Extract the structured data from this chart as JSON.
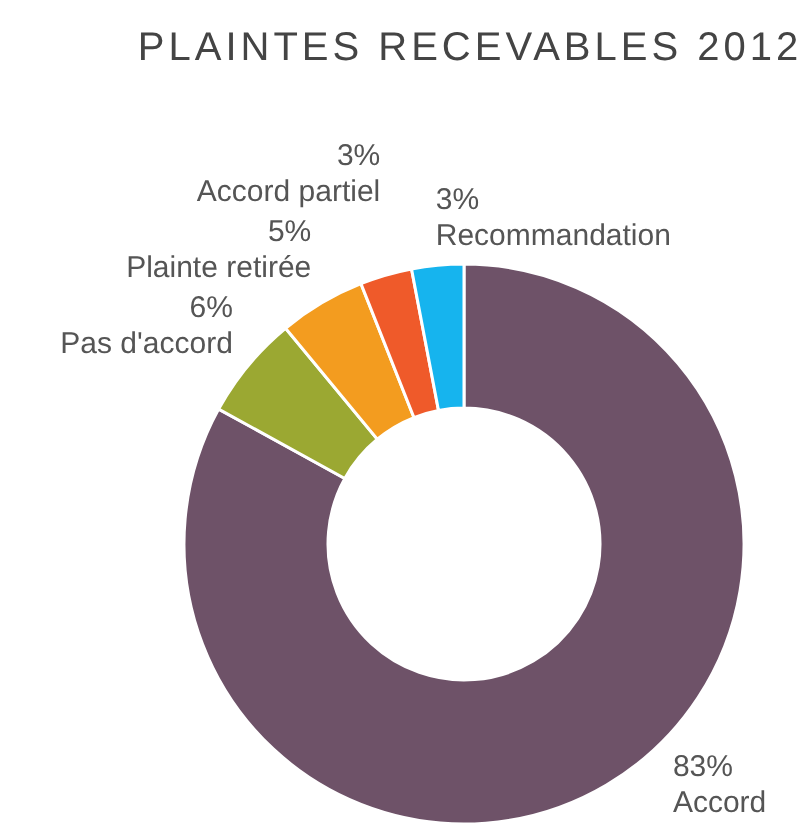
{
  "chart_data": {
    "type": "donut",
    "title": "PLAINTES RECEVABLES 2012",
    "categories": [
      "Accord",
      "Pas d'accord",
      "Plainte retirée",
      "Accord partiel",
      "Recommandation"
    ],
    "values": [
      83,
      6,
      5,
      3,
      3
    ],
    "value_labels": [
      "83%",
      "6%",
      "5%",
      "3%",
      "3%"
    ],
    "colors": [
      "#6e5268",
      "#9ba832",
      "#f39c1f",
      "#ef5a2a",
      "#16b4ee"
    ]
  }
}
